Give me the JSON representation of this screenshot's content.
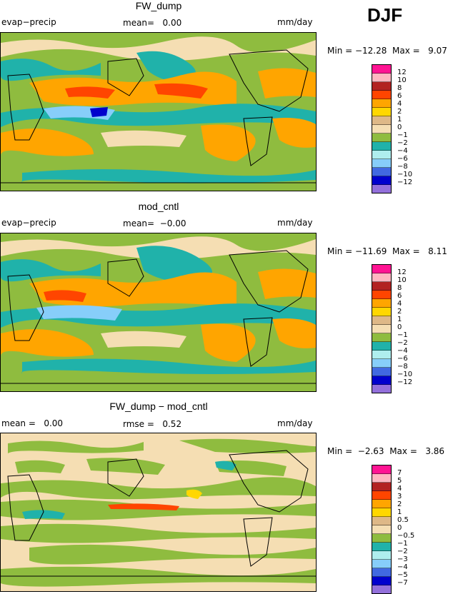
{
  "season": "DJF",
  "colors": {
    "ge12": "#ff1493",
    "ge10": "#ffb6c1",
    "ge8": "#b22222",
    "ge6": "#ff4500",
    "ge4": "#ffa500",
    "ge2": "#ffd700",
    "ge1": "#deb887",
    "ge0": "#f5deb3",
    "gem1": "#8fbc3f",
    "gem2": "#20b2aa",
    "gem4": "#afeeee",
    "gem6": "#87cefa",
    "gem8": "#4169e1",
    "gem10": "#0000cd",
    "gem12": "#9370db"
  },
  "panels": [
    {
      "title": "FW_dump",
      "left_label": "evap−precip",
      "mid_label": "mean=   0.00",
      "right_label": "mm/day",
      "stats": "Min = −12.28  Max =   9.07",
      "colorbar_labels": [
        "12",
        "10",
        "8",
        "6",
        "4",
        "2",
        "1",
        "0",
        "−1",
        "−2",
        "−4",
        "−6",
        "−8",
        "−10",
        "−12"
      ]
    },
    {
      "title": "mod_cntl",
      "left_label": "evap−precip",
      "mid_label": "mean=  −0.00",
      "right_label": "mm/day",
      "stats": "Min = −11.69  Max =   8.11",
      "colorbar_labels": [
        "12",
        "10",
        "8",
        "6",
        "4",
        "2",
        "1",
        "0",
        "−1",
        "−2",
        "−4",
        "−6",
        "−8",
        "−10",
        "−12"
      ]
    },
    {
      "title": "FW_dump − mod_cntl",
      "left_label": "mean =   0.00",
      "mid_label": "rmse =   0.52",
      "right_label": "mm/day",
      "stats": "Min =  −2.63  Max =   3.86",
      "colorbar_labels": [
        "7",
        "5",
        "4",
        "3",
        "2",
        "1",
        "0.5",
        "0",
        "−0.5",
        "−1",
        "−2",
        "−3",
        "−4",
        "−5",
        "−7"
      ]
    }
  ]
}
